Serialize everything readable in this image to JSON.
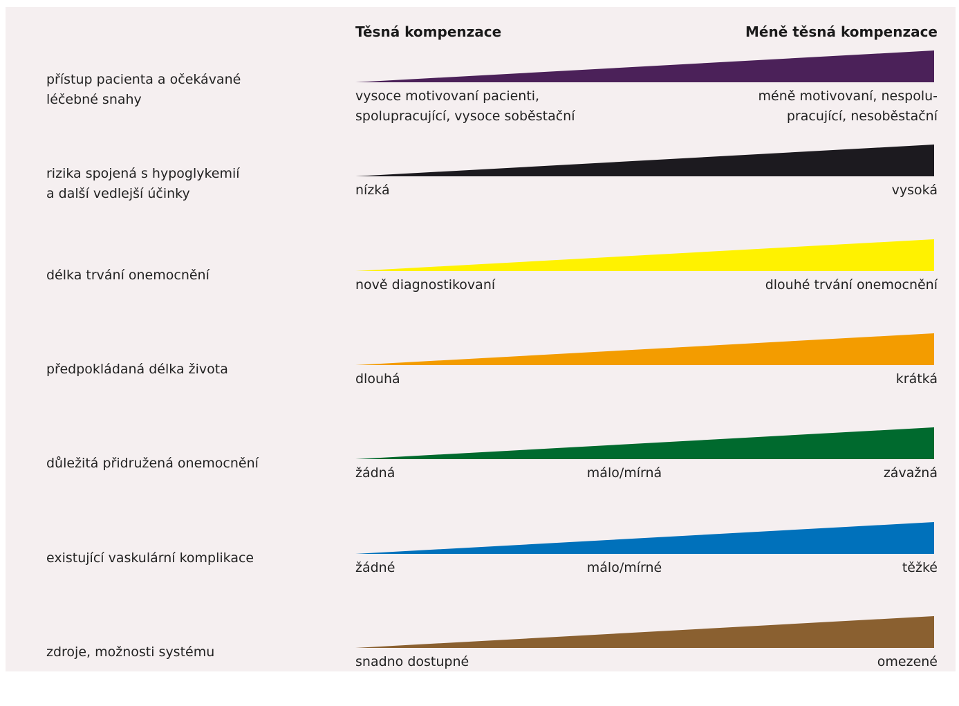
{
  "header": {
    "left": "Těsná kompenzace",
    "right": "Méně těsná kompenzace"
  },
  "rows": [
    {
      "factor": [
        "přístup pacienta a očekávané",
        "léčebné snahy"
      ],
      "color": "#4b2159",
      "left": [
        "vysoce motivovaní pacienti,",
        "spolupracující, vysoce soběstační"
      ],
      "mid": null,
      "right": [
        "méně motivovaní, nespolu-",
        "pracující, nesoběstační"
      ]
    },
    {
      "factor": [
        "rizika spojená s hypoglykemií",
        "a další vedlejší účinky"
      ],
      "color": "#1c1a1f",
      "left": [
        "nízká"
      ],
      "mid": null,
      "right": [
        "vysoká"
      ]
    },
    {
      "factor": [
        "délka trvání onemocnění"
      ],
      "color": "#fff200",
      "left": [
        "nově diagnostikovaní"
      ],
      "mid": null,
      "right": [
        "dlouhé trvání onemocnění"
      ]
    },
    {
      "factor": [
        "předpokládaná délka života"
      ],
      "color": "#f39c00",
      "left": [
        "dlouhá"
      ],
      "mid": null,
      "right": [
        "krátká"
      ]
    },
    {
      "factor": [
        "důležitá přidružená onemocnění"
      ],
      "color": "#006a2e",
      "left": [
        "žádná"
      ],
      "mid": [
        "málo/mírná"
      ],
      "right": [
        "závažná"
      ]
    },
    {
      "factor": [
        "existující vaskulární komplikace"
      ],
      "color": "#0071bb",
      "left": [
        "žádné"
      ],
      "mid": [
        "málo/mírné"
      ],
      "right": [
        "těžké"
      ]
    },
    {
      "factor": [
        "zdroje, možnosti systému"
      ],
      "color": "#8a6030",
      "left": [
        "snadno dostupné"
      ],
      "mid": null,
      "right": [
        "omezené"
      ]
    }
  ]
}
